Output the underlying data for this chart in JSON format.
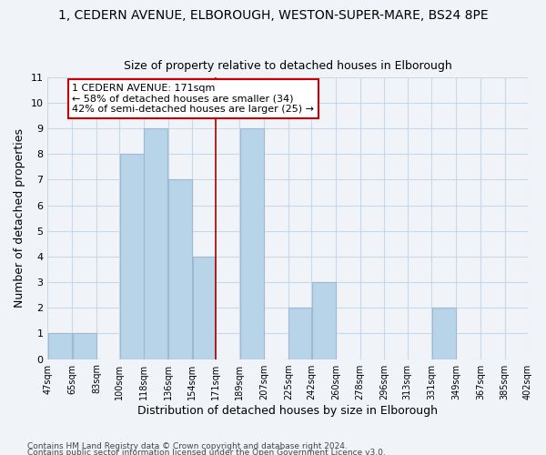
{
  "title": "1, CEDERN AVENUE, ELBOROUGH, WESTON-SUPER-MARE, BS24 8PE",
  "subtitle": "Size of property relative to detached houses in Elborough",
  "xlabel": "Distribution of detached houses by size in Elborough",
  "ylabel": "Number of detached properties",
  "bar_edges": [
    47,
    65,
    83,
    100,
    118,
    136,
    154,
    171,
    189,
    207,
    225,
    242,
    260,
    278,
    296,
    313,
    331,
    349,
    367,
    385,
    402
  ],
  "bar_heights": [
    1,
    1,
    0,
    8,
    9,
    7,
    4,
    0,
    9,
    0,
    2,
    3,
    0,
    0,
    0,
    0,
    2,
    0,
    0,
    0
  ],
  "bar_color": "#b8d4e8",
  "bar_edge_color": "#a0b8d0",
  "reference_line_x": 171,
  "reference_line_color": "#aa0000",
  "ylim": [
    0,
    11
  ],
  "yticks": [
    0,
    1,
    2,
    3,
    4,
    5,
    6,
    7,
    8,
    9,
    10,
    11
  ],
  "grid_color": "#c8d8e8",
  "annotation_text": "1 CEDERN AVENUE: 171sqm\n← 58% of detached houses are smaller (34)\n42% of semi-detached houses are larger (25) →",
  "annotation_box_color": "#ffffff",
  "annotation_box_edge": "#cc0000",
  "footnote1": "Contains HM Land Registry data © Crown copyright and database right 2024.",
  "footnote2": "Contains public sector information licensed under the Open Government Licence v3.0.",
  "tick_labels": [
    "47sqm",
    "65sqm",
    "83sqm",
    "100sqm",
    "118sqm",
    "136sqm",
    "154sqm",
    "171sqm",
    "189sqm",
    "207sqm",
    "225sqm",
    "242sqm",
    "260sqm",
    "278sqm",
    "296sqm",
    "313sqm",
    "331sqm",
    "349sqm",
    "367sqm",
    "385sqm",
    "402sqm"
  ],
  "title_fontsize": 10,
  "subtitle_fontsize": 9,
  "background_color": "#f0f4f8"
}
